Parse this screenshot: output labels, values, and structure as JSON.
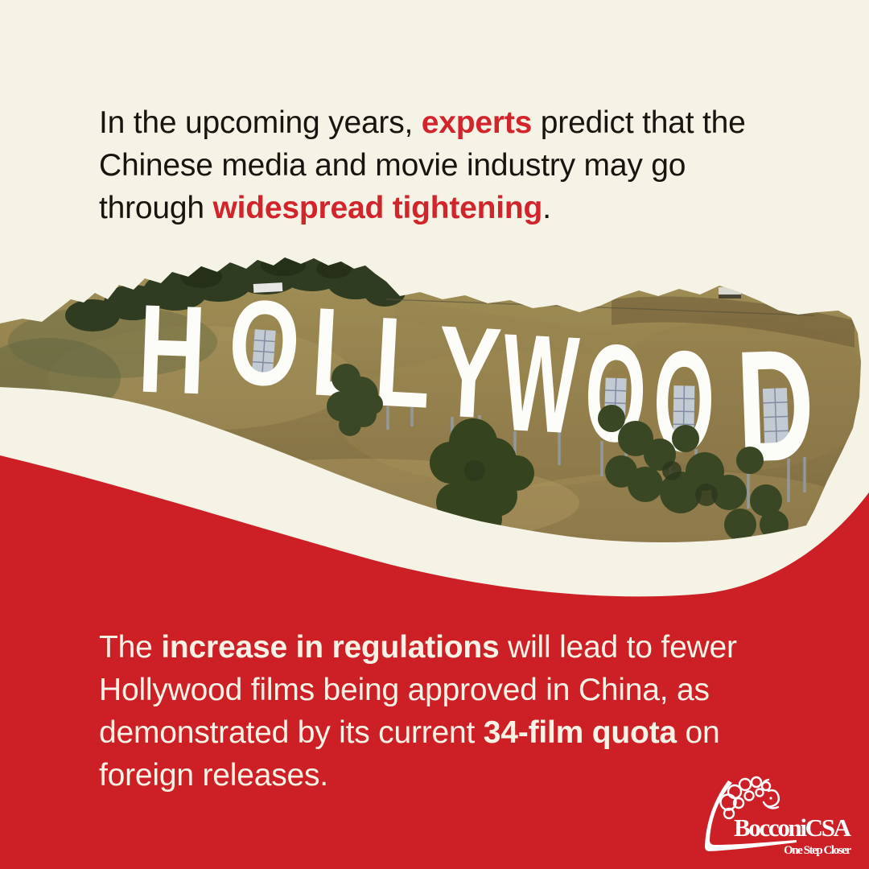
{
  "page": {
    "background_color": "#f5f2e6",
    "accent_red": "#cc2026",
    "highlight_red": "#d2242b",
    "text_dark": "#18140f",
    "text_light": "#f6f2e5"
  },
  "top_text": {
    "segments": [
      {
        "text": "In the upcoming years, "
      },
      {
        "text": "experts",
        "bold": true,
        "red": true
      },
      {
        "text": " predict that the\nChinese media and movie industry may go\nthrough "
      },
      {
        "text": "widespread tightening",
        "bold": true,
        "red": true
      },
      {
        "text": "."
      }
    ]
  },
  "photo": {
    "description": "Hollywood sign on a scrubby hillside, cut out on cream background",
    "sign_text": "HOLLYWOOD"
  },
  "bottom_text": {
    "segments": [
      {
        "text": "The "
      },
      {
        "text": "increase in regulations",
        "bold": true
      },
      {
        "text": " will lead to fewer\nHollywood films being approved in China, as\ndemonstrated by its current "
      },
      {
        "text": "34-film quota",
        "bold": true
      },
      {
        "text": " on\nforeign releases."
      }
    ]
  },
  "logo": {
    "name": "BocconiCSA",
    "tagline": "One Step Closer"
  }
}
